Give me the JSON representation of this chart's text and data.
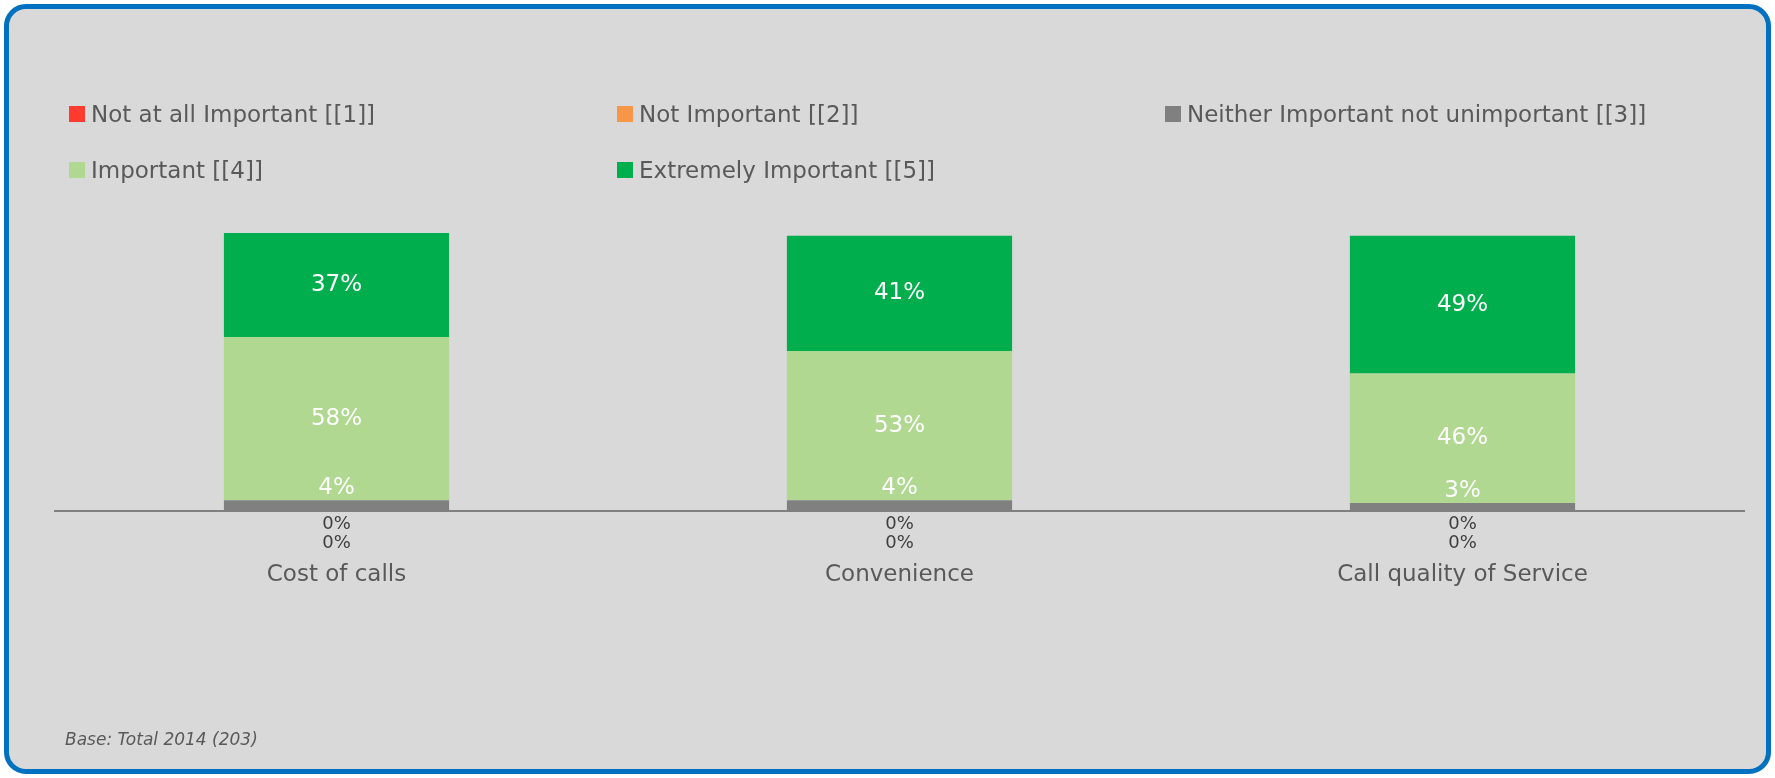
{
  "chart_data": {
    "type": "bar",
    "stacked": true,
    "legend": "top",
    "grid": false,
    "categories": [
      "Cost of calls",
      "Convenience",
      "Call quality of Service"
    ],
    "series": [
      {
        "name": "Not at all Important [[1]]",
        "color": "#ff3b30",
        "values": [
          0,
          0,
          0
        ],
        "value_labels": [
          "0%",
          "0%",
          "0%"
        ]
      },
      {
        "name": "Not Important [[2]]",
        "color": "#f79646",
        "values": [
          0,
          0,
          0
        ],
        "value_labels": [
          "0%",
          "0%",
          "0%"
        ]
      },
      {
        "name": "Neither Important not unimportant [[3]]",
        "color": "#808080",
        "values": [
          4,
          4,
          3
        ],
        "value_labels": [
          "4%",
          "4%",
          "3%"
        ]
      },
      {
        "name": "Important [[4]]",
        "color": "#b0d890",
        "values": [
          58,
          53,
          46
        ],
        "value_labels": [
          "58%",
          "53%",
          "46%"
        ]
      },
      {
        "name": "Extremely Important [[5]]",
        "color": "#00ae4d",
        "values": [
          37,
          41,
          49
        ],
        "value_labels": [
          "37%",
          "41%",
          "49%"
        ]
      }
    ],
    "annotations": [
      "Base: Total 2014 (203)"
    ]
  }
}
